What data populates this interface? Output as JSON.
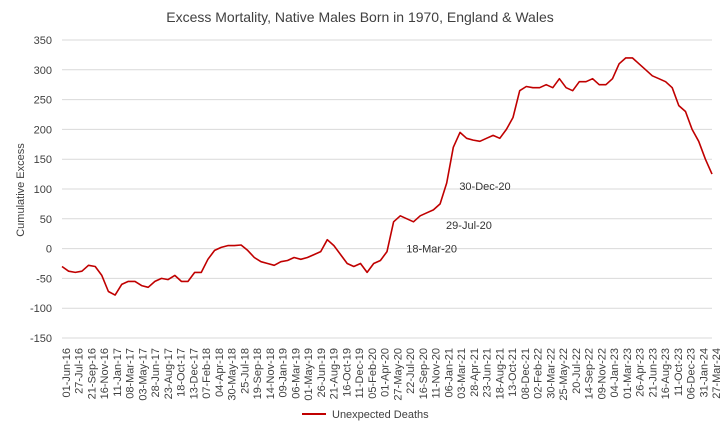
{
  "chart_data": {
    "type": "line",
    "title": "Excess Mortality, Native Males Born in 1970, England & Wales",
    "xlabel": "",
    "ylabel": "Cumulative Excess",
    "ylim": [
      -150,
      350
    ],
    "yticks": [
      -150,
      -100,
      -50,
      0,
      50,
      100,
      150,
      200,
      250,
      300,
      350
    ],
    "grid": "horizontal",
    "legend_position": "bottom",
    "x_tick_labels": [
      "01-Jun-16",
      "27-Jul-16",
      "21-Sep-16",
      "16-Nov-16",
      "11-Jan-17",
      "08-Mar-17",
      "03-May-17",
      "28-Jun-17",
      "23-Aug-17",
      "18-Oct-17",
      "13-Dec-17",
      "07-Feb-18",
      "04-Apr-18",
      "30-May-18",
      "25-Jul-18",
      "19-Sep-18",
      "14-Nov-18",
      "09-Jan-19",
      "06-Mar-19",
      "01-May-19",
      "26-Jun-19",
      "21-Aug-19",
      "16-Oct-19",
      "11-Dec-19",
      "05-Feb-20",
      "01-Apr-20",
      "27-May-20",
      "22-Jul-20",
      "16-Sep-20",
      "11-Nov-20",
      "06-Jan-21",
      "03-Mar-21",
      "28-Apr-21",
      "23-Jun-21",
      "18-Aug-21",
      "13-Oct-21",
      "08-Dec-21",
      "02-Feb-22",
      "30-Mar-22",
      "25-May-22",
      "20-Jul-22",
      "14-Sep-22",
      "09-Nov-22",
      "04-Jan-23",
      "01-Mar-23",
      "26-Apr-23",
      "21-Jun-23",
      "16-Aug-23",
      "11-Oct-23",
      "06-Dec-23",
      "31-Jan-24",
      "27-Mar-24"
    ],
    "series": [
      {
        "name": "Unexpected Deaths",
        "color": "#c00000",
        "values": [
          -30,
          -38,
          -40,
          -38,
          -28,
          -30,
          -45,
          -72,
          -78,
          -60,
          -55,
          -55,
          -62,
          -65,
          -55,
          -50,
          -52,
          -45,
          -55,
          -55,
          -40,
          -40,
          -18,
          -3,
          2,
          5,
          5,
          6,
          -3,
          -15,
          -22,
          -25,
          -28,
          -22,
          -20,
          -15,
          -18,
          -15,
          -10,
          -5,
          15,
          5,
          -10,
          -25,
          -30,
          -25,
          -40,
          -25,
          -20,
          -5,
          45,
          55,
          50,
          45,
          55,
          60,
          65,
          75,
          110,
          170,
          195,
          185,
          182,
          180,
          185,
          190,
          185,
          200,
          220,
          265,
          272,
          270,
          270,
          275,
          270,
          285,
          270,
          265,
          280,
          280,
          285,
          275,
          275,
          285,
          310,
          320,
          320,
          310,
          300,
          290,
          285,
          280,
          270,
          240,
          230,
          200,
          180,
          150,
          125
        ]
      }
    ],
    "annotations": [
      {
        "label": "18-Mar-20",
        "x_index": 51,
        "y": 0
      },
      {
        "label": "29-Jul-20",
        "x_index": 57,
        "y": 40
      },
      {
        "label": "30-Dec-20",
        "x_index": 59,
        "y": 105
      }
    ]
  }
}
